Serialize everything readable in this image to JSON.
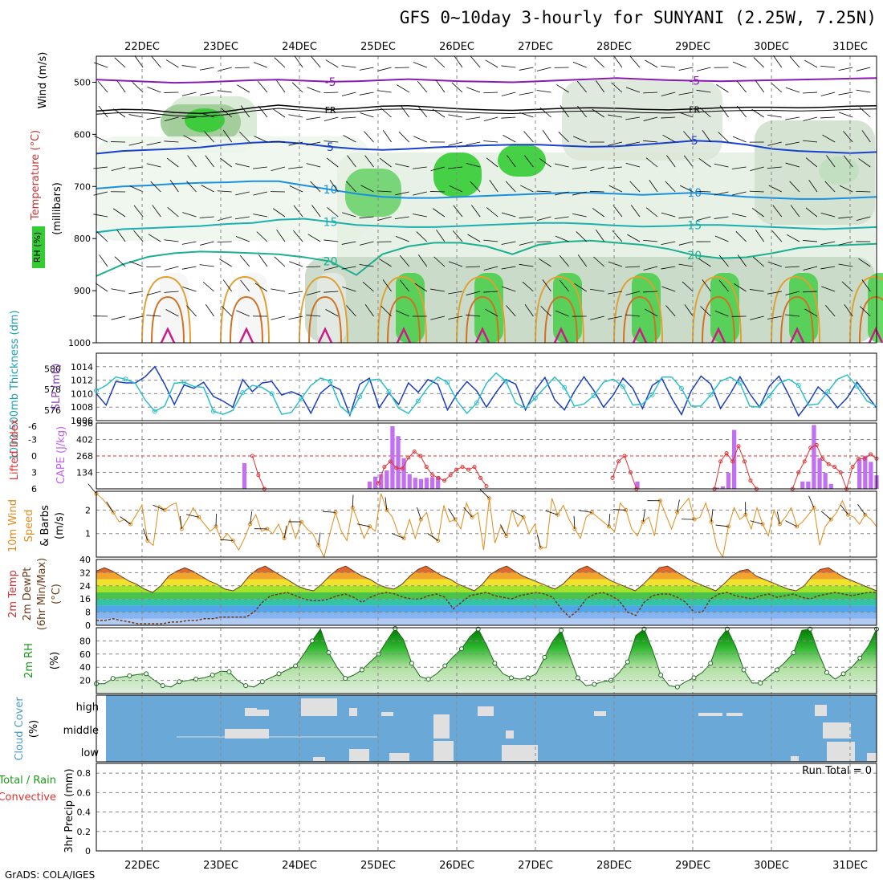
{
  "title": "GFS 0~10day 3-hourly for SUNYANI (2.25W, 7.25N)",
  "footer": "GrADS: COLA/IGES",
  "dates": [
    "22DEC",
    "23DEC",
    "24DEC",
    "25DEC",
    "26DEC",
    "27DEC",
    "28DEC",
    "29DEC",
    "30DEC",
    "31DEC"
  ],
  "colors": {
    "grid": "#888888",
    "rh_green": "#33cc33",
    "slp": "#1a3fbf",
    "thick": "#2cc0c8",
    "wind": "#e08c1a",
    "cloud_bg": "#6aa8d8",
    "cape": "#c070f0",
    "li": "#e03030",
    "rh2m": "#1a9a1a"
  },
  "chart_data": [
    {
      "id": "upper-air",
      "type": "heatmap",
      "ylabel_parts": [
        "Wind",
        "(m/s)",
        "Temperature",
        "(°C)",
        "RH (%)",
        "(millibars)"
      ],
      "y_ticks": [
        "500",
        "600",
        "700",
        "800",
        "900",
        "1000"
      ],
      "ylim": [
        1000,
        450
      ],
      "temp_contours": [
        {
          "label": "-5",
          "values_mb": [
            495,
            497,
            499,
            501,
            500,
            498,
            496,
            495,
            497,
            499,
            498,
            496,
            494,
            496,
            498,
            499,
            500,
            498,
            496,
            494,
            492,
            494,
            496,
            497,
            498,
            497,
            496,
            495,
            494,
            493,
            492
          ]
        },
        {
          "label": "FR",
          "values_mb": [
            555,
            552,
            553,
            558,
            560,
            556,
            549,
            544,
            548,
            552,
            550,
            546,
            545,
            548,
            551,
            553,
            554,
            552,
            550,
            549,
            550,
            552,
            553,
            551,
            549,
            548,
            548,
            549,
            548,
            546,
            545
          ]
        },
        {
          "label": "5",
          "values_mb": [
            637,
            632,
            630,
            628,
            625,
            620,
            616,
            614,
            618,
            624,
            628,
            630,
            628,
            625,
            623,
            621,
            620,
            620,
            622,
            624,
            623,
            620,
            616,
            612,
            614,
            620,
            628,
            632,
            634,
            636,
            634
          ]
        },
        {
          "label": "10",
          "values_mb": [
            704,
            700,
            698,
            695,
            693,
            692,
            690,
            690,
            698,
            706,
            714,
            720,
            722,
            722,
            720,
            718,
            716,
            714,
            712,
            712,
            714,
            716,
            714,
            712,
            716,
            720,
            722,
            724,
            724,
            722,
            720
          ]
        },
        {
          "label": "15",
          "values_mb": [
            788,
            782,
            780,
            778,
            776,
            772,
            770,
            764,
            762,
            768,
            774,
            776,
            778,
            778,
            776,
            774,
            772,
            770,
            770,
            772,
            775,
            777,
            776,
            774,
            774,
            776,
            778,
            780,
            782,
            780,
            778
          ]
        },
        {
          "label": "20",
          "values_mb": [
            872,
            850,
            835,
            828,
            825,
            826,
            828,
            830,
            836,
            844,
            870,
            830,
            815,
            808,
            808,
            815,
            830,
            812,
            806,
            804,
            808,
            812,
            820,
            832,
            838,
            836,
            828,
            818,
            814,
            812,
            810
          ]
        }
      ]
    },
    {
      "id": "slp-thickness",
      "type": "line",
      "ylabel_left": "1000-500mb Thickness (dm)",
      "ylabel_right": "SLP (mb)",
      "left_ticks": [
        "580",
        "578",
        "576"
      ],
      "right_ticks": [
        "1014",
        "1012",
        "1010",
        "1008",
        "1006"
      ],
      "series": [
        {
          "name": "SLP (mb)",
          "axis": "slp",
          "values": [
            1010,
            1008.3,
            1011.8,
            1011.6,
            1011.6,
            1012.5,
            1014,
            1011.4,
            1008.4,
            1011.3,
            1010.8,
            1011.7,
            1009.6,
            1008.9,
            1008,
            1012.1,
            1010.3,
            1011.6,
            1011.8,
            1009.8,
            1010.3,
            1009.7,
            1007.1,
            1010.1,
            1011.3,
            1010.6,
            1006.8,
            1011.4,
            1012.3,
            1007.9,
            1010.1,
            1008.4,
            1011.6,
            1010.2,
            1012.1,
            1011.4,
            1007.6,
            1010,
            1011.8,
            1010.4,
            1008,
            1010.2,
            1012.1,
            1011.4,
            1007.6,
            1010.5,
            1012.4,
            1009.1,
            1007.6,
            1010.3,
            1012.5,
            1010.5,
            1008,
            1009.8,
            1012.3,
            1010.8,
            1007.8,
            1011.2,
            1012.2,
            1009.3,
            1006.9,
            1010.4,
            1012.6,
            1011.4,
            1007.8,
            1010,
            1012.5,
            1010,
            1008,
            1011.1,
            1012.6,
            1009.8,
            1006.7,
            1008.6,
            1011,
            1009.7,
            1007.9,
            1009.4,
            1011.7,
            1009.8,
            1007.9
          ]
        },
        {
          "name": "Thickness (dm)",
          "axis": "thick",
          "values": [
            577.9,
            578.4,
            579.2,
            579.0,
            578.6,
            577.0,
            575.9,
            576.4,
            578.6,
            578.7,
            578.3,
            578.2,
            575.9,
            575.6,
            576.0,
            577.7,
            578.4,
            578.2,
            577.6,
            575.6,
            575.8,
            577.1,
            578.4,
            579.1,
            578.8,
            576.4,
            575.6,
            577.3,
            578.9,
            579.0,
            577.8,
            576.2,
            575.7,
            576.9,
            578.2,
            579.2,
            578.7,
            576.9,
            575.7,
            576.7,
            578.6,
            579.6,
            578.8,
            576.7,
            576.2,
            577.2,
            578.2,
            579.2,
            578.2,
            576.4,
            576.6,
            577.4,
            578.7,
            579.0,
            578.3,
            576.5,
            576.6,
            577.5,
            579.2,
            579.2,
            578.1,
            576.4,
            576.4,
            577.5,
            578.8,
            579.2,
            578.6,
            576.4,
            576.3,
            577.4,
            578.6,
            579.0,
            578.4,
            576.5,
            576.6,
            577.8,
            579.0,
            579.4,
            578.3,
            576.9,
            576.4
          ]
        }
      ],
      "slp_range": [
        1006,
        1016
      ],
      "thick_range": [
        575,
        581.5
      ]
    },
    {
      "id": "cape-li",
      "type": "bar",
      "ylabel_left": "Lifted Index",
      "ylabel_right": "CAPE (J/kg)",
      "li_ticks": [
        "-3",
        "0",
        "3",
        "6"
      ],
      "li_top_tick": "-6",
      "cape_ticks": [
        "536",
        "402",
        "268",
        "134"
      ],
      "cape_values": [
        0,
        0,
        0,
        0,
        0,
        0,
        0,
        0,
        0,
        0,
        0,
        0,
        0,
        0,
        0,
        0,
        0,
        0,
        0,
        0,
        0,
        0,
        0,
        0,
        0,
        0,
        209,
        0,
        0,
        0,
        0,
        0,
        0,
        0,
        0,
        0,
        0,
        0,
        0,
        0,
        0,
        0,
        0,
        0,
        0,
        0,
        0,
        0,
        60,
        100,
        120,
        150,
        510,
        430,
        250,
        120,
        90,
        80,
        90,
        95,
        100,
        0,
        0,
        0,
        0,
        0,
        0,
        0,
        0,
        0,
        0,
        0,
        0,
        0,
        0,
        0,
        0,
        0,
        0,
        0,
        0,
        0,
        0,
        0,
        0,
        0,
        0,
        0,
        0,
        0,
        0,
        0,
        0,
        0,
        0,
        60,
        0,
        0,
        0,
        0,
        0,
        0,
        0,
        0,
        0,
        0,
        0,
        0,
        0,
        10,
        20,
        130,
        480,
        0,
        0,
        0,
        0,
        0,
        0,
        0,
        0,
        0,
        0,
        0,
        60,
        60,
        520,
        250,
        130,
        40,
        0,
        0,
        0,
        0,
        240,
        270,
        220,
        110
      ],
      "li_values": [
        null,
        null,
        null,
        null,
        null,
        null,
        null,
        null,
        null,
        null,
        null,
        null,
        null,
        null,
        null,
        null,
        null,
        null,
        null,
        null,
        null,
        null,
        null,
        null,
        null,
        null,
        0,
        3.5,
        6,
        null,
        null,
        null,
        null,
        null,
        null,
        null,
        null,
        null,
        null,
        null,
        null,
        null,
        null,
        null,
        null,
        null,
        null,
        5,
        2,
        1,
        2.2,
        2.3,
        0.3,
        -0.8,
        0,
        2,
        3.5,
        4,
        4.5,
        3.5,
        2.5,
        2,
        2.5,
        2,
        4,
        5.5,
        null,
        null,
        null,
        null,
        null,
        null,
        null,
        null,
        null,
        null,
        null,
        null,
        null,
        null,
        null,
        null,
        null,
        null,
        null,
        null,
        4,
        1,
        0,
        3,
        6,
        null,
        null,
        null,
        null,
        null,
        null,
        null,
        null,
        null,
        null,
        null,
        null,
        6,
        1,
        -0.5,
        1,
        -1.8,
        1,
        4.5,
        6,
        null,
        null,
        null,
        null,
        null,
        6,
        3,
        1,
        -1.5,
        -2,
        0.5,
        1.5,
        2,
        3,
        6,
        2,
        0.5,
        0.5,
        -0.3,
        0.5
      ]
    },
    {
      "id": "wind10m",
      "type": "line",
      "ylabel_left": "10m Wind",
      "ylabel_mid": "Speed",
      "ylabel_right": "& Barbs",
      "ylabel_unit": "(m/s)",
      "y_ticks": [
        "2",
        "1"
      ],
      "ylim": [
        0,
        2.8
      ],
      "values": [
        2.7,
        2.5,
        2.2,
        1.9,
        1.5,
        1.6,
        1.4,
        1.8,
        2.2,
        0.7,
        0.5,
        2.2,
        2.0,
        2.2,
        2.3,
        1.2,
        1.6,
        2.1,
        1.7,
        1.4,
        1.1,
        1.3,
        0.7,
        1.0,
        0.7,
        0.3,
        0.8,
        1.4,
        1.8,
        1.1,
        1.2,
        1.0,
        1.4,
        0.8,
        1.6,
        0.8,
        1.5,
        1.2,
        1.0,
        0.5,
        0.0,
        1.0,
        1.9,
        1.1,
        0.7,
        2.1,
        1.5,
        0.8,
        1.3,
        1.1,
        2.7,
        2.0,
        1.7,
        1.0,
        0.8,
        1.6,
        0.8,
        1.6,
        1.9,
        0.9,
        0.7,
        2.2,
        1.5,
        1.6,
        1.2,
        2.3,
        1.7,
        1.9,
        0.3,
        2.5,
        0.6,
        1.3,
        0.9,
        2.0,
        1.3,
        1.7,
        1.0,
        1.4,
        0.4,
        0.4,
        2.5,
        1.8,
        2.2,
        1.6,
        1.2,
        0.8,
        1.7,
        1.9,
        1.7,
        1.5,
        1.3,
        1.1,
        2.3,
        2.0,
        1.2,
        0.9,
        1.5,
        1.7,
        0.9,
        2.4,
        1.8,
        1.2,
        1.9,
        2.2,
        2.5,
        1.6,
        1.7,
        2.3,
        1.5,
        0.4,
        0.0,
        1.3,
        2.1,
        1.6,
        1.8,
        1.2,
        2.1,
        1.4,
        0.9,
        2.0,
        1.4,
        1.7,
        2.1,
        1.3,
        1.5,
        1.8,
        2.1,
        0.5,
        1.3,
        1.6,
        1.9,
        2.4,
        1.8,
        1.7,
        1.4,
        1.8,
        1.6,
        1.3
      ]
    },
    {
      "id": "temp2m",
      "type": "area",
      "ylabel_parts": [
        "2m Temp",
        "2m DewPt",
        "(6hr Min/Max)",
        "(°C)"
      ],
      "y_ticks": [
        "40",
        "32",
        "24",
        "16",
        "8",
        "0"
      ],
      "ylim": [
        0,
        40
      ],
      "temp_values": [
        33,
        35,
        33,
        30,
        27,
        25,
        22,
        20,
        24,
        30,
        33,
        35,
        33,
        30,
        27,
        25,
        22,
        21,
        24,
        30,
        34,
        36,
        33,
        30,
        27,
        24,
        22,
        21,
        25,
        30,
        34,
        36,
        33,
        30,
        28,
        25,
        23,
        22,
        25,
        30,
        34,
        36,
        33,
        30,
        28,
        25,
        23,
        21,
        25,
        31,
        34,
        36,
        33,
        30,
        28,
        26,
        24,
        22,
        25,
        30,
        34,
        36,
        33,
        30,
        27,
        25,
        23,
        21,
        25,
        30,
        35,
        36,
        33,
        30,
        27,
        25,
        23,
        21,
        25,
        30,
        33,
        34,
        30,
        28,
        26,
        24,
        22,
        21,
        24,
        30,
        34,
        35,
        32,
        29,
        27,
        25,
        23,
        21
      ],
      "dewpt_values": [
        3,
        3,
        4,
        3,
        2,
        1,
        1,
        1,
        1,
        2,
        2,
        3,
        3,
        4,
        4,
        5,
        5,
        5,
        5,
        8,
        14,
        18,
        19,
        20,
        18,
        16,
        15,
        15,
        16,
        18,
        19,
        17,
        14,
        17,
        19,
        20,
        19,
        17,
        16,
        16,
        18,
        19,
        17,
        10,
        14,
        18,
        19,
        20,
        18,
        17,
        16,
        18,
        19,
        20,
        19,
        17,
        10,
        5,
        9,
        16,
        19,
        20,
        18,
        15,
        8,
        6,
        14,
        18,
        19,
        19,
        17,
        14,
        8,
        8,
        16,
        19,
        20,
        18,
        17,
        16,
        18,
        19,
        17,
        18,
        19,
        17,
        16,
        18,
        19,
        20,
        19,
        18,
        19,
        20,
        20
      ]
    },
    {
      "id": "rh2m",
      "type": "area",
      "ylabel": "2m RH",
      "ylabel_unit": "(%)",
      "y_ticks": [
        "80",
        "60",
        "40",
        "20"
      ],
      "ylim": [
        0,
        100
      ],
      "values": [
        15,
        15,
        23,
        25,
        27,
        29,
        30,
        20,
        12,
        10,
        18,
        20,
        22,
        24,
        28,
        34,
        33,
        20,
        12,
        10,
        18,
        24,
        30,
        36,
        42,
        60,
        80,
        98,
        62,
        40,
        23,
        28,
        36,
        48,
        60,
        80,
        99,
        82,
        46,
        26,
        22,
        30,
        42,
        56,
        68,
        86,
        98,
        74,
        46,
        30,
        24,
        22,
        24,
        30,
        55,
        80,
        96,
        58,
        24,
        12,
        14,
        18,
        20,
        32,
        48,
        88,
        98,
        66,
        28,
        12,
        10,
        18,
        24,
        32,
        46,
        82,
        98,
        72,
        36,
        16,
        16,
        26,
        36,
        48,
        62,
        96,
        98,
        62,
        32,
        22,
        30,
        40,
        54,
        72,
        98
      ]
    },
    {
      "id": "cloud-cover",
      "type": "bar",
      "ylabel": "Cloud Cover",
      "ylabel_unit": "(%)",
      "levels": [
        "high",
        "middle",
        "low"
      ]
    },
    {
      "id": "precip",
      "type": "bar",
      "ylabel_left": "Total / Rain",
      "ylabel_right": "Convective",
      "ylabel_main": "3hr Precip (mm)",
      "y_ticks": [
        "0.8",
        "0.6",
        "0.4",
        "0.2",
        "0"
      ],
      "ylim": [
        0,
        0.9
      ],
      "run_total_label": "Run Total = 0",
      "values": []
    }
  ]
}
